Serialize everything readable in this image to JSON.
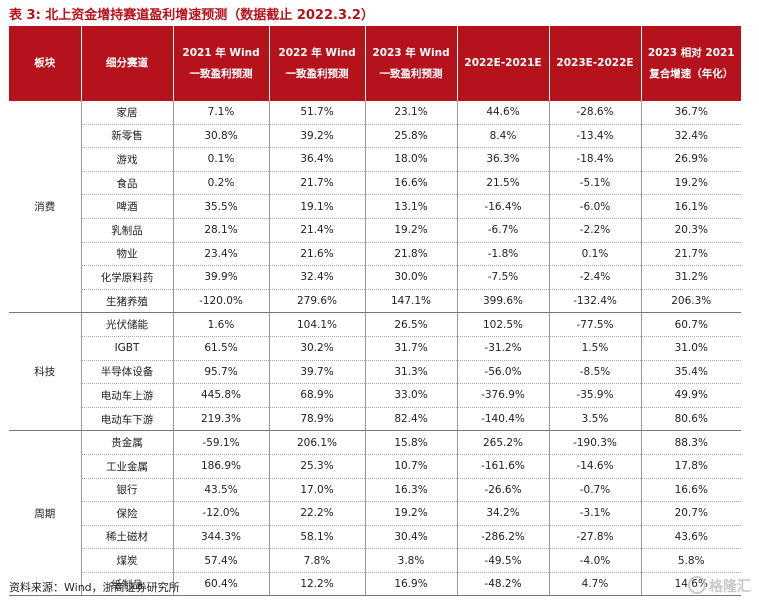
{
  "caption": "表 3: 北上资金增持赛道盈利增速预测（数据截止 2022.3.2）",
  "headers": [
    "板块",
    "细分赛道",
    "2021 年 Wind 一致盈利预测",
    "2022 年 Wind 一致盈利预测",
    "2023 年 Wind 一致盈利预测",
    "2022E-2021E",
    "2023E-2022E",
    "2023 相对 2021 复合增速（年化）"
  ],
  "groups": [
    {
      "name": "消费",
      "rows": [
        [
          "家居",
          "7.1%",
          "51.7%",
          "23.1%",
          "44.6%",
          "-28.6%",
          "36.7%"
        ],
        [
          "新零售",
          "30.8%",
          "39.2%",
          "25.8%",
          "8.4%",
          "-13.4%",
          "32.4%"
        ],
        [
          "游戏",
          "0.1%",
          "36.4%",
          "18.0%",
          "36.3%",
          "-18.4%",
          "26.9%"
        ],
        [
          "食品",
          "0.2%",
          "21.7%",
          "16.6%",
          "21.5%",
          "-5.1%",
          "19.2%"
        ],
        [
          "啤酒",
          "35.5%",
          "19.1%",
          "13.1%",
          "-16.4%",
          "-6.0%",
          "16.1%"
        ],
        [
          "乳制品",
          "28.1%",
          "21.4%",
          "19.2%",
          "-6.7%",
          "-2.2%",
          "20.3%"
        ],
        [
          "物业",
          "23.4%",
          "21.6%",
          "21.8%",
          "-1.8%",
          "0.1%",
          "21.7%"
        ],
        [
          "化学原料药",
          "39.9%",
          "32.4%",
          "30.0%",
          "-7.5%",
          "-2.4%",
          "31.2%"
        ],
        [
          "生猪养殖",
          "-120.0%",
          "279.6%",
          "147.1%",
          "399.6%",
          "-132.4%",
          "206.3%"
        ]
      ]
    },
    {
      "name": "科技",
      "rows": [
        [
          "光伏储能",
          "1.6%",
          "104.1%",
          "26.5%",
          "102.5%",
          "-77.5%",
          "60.7%"
        ],
        [
          "IGBT",
          "61.5%",
          "30.2%",
          "31.7%",
          "-31.2%",
          "1.5%",
          "31.0%"
        ],
        [
          "半导体设备",
          "95.7%",
          "39.7%",
          "31.3%",
          "-56.0%",
          "-8.5%",
          "35.4%"
        ],
        [
          "电动车上游",
          "445.8%",
          "68.9%",
          "33.0%",
          "-376.9%",
          "-35.9%",
          "49.9%"
        ],
        [
          "电动车下游",
          "219.3%",
          "78.9%",
          "82.4%",
          "-140.4%",
          "3.5%",
          "80.6%"
        ]
      ]
    },
    {
      "name": "周期",
      "rows": [
        [
          "贵金属",
          "-59.1%",
          "206.1%",
          "15.8%",
          "265.2%",
          "-190.3%",
          "88.3%"
        ],
        [
          "工业金属",
          "186.9%",
          "25.3%",
          "10.7%",
          "-161.6%",
          "-14.6%",
          "17.8%"
        ],
        [
          "银行",
          "43.5%",
          "17.0%",
          "16.3%",
          "-26.6%",
          "-0.7%",
          "16.6%"
        ],
        [
          "保险",
          "-12.0%",
          "22.2%",
          "19.2%",
          "34.2%",
          "-3.1%",
          "20.7%"
        ],
        [
          "稀土磁材",
          "344.3%",
          "58.1%",
          "30.4%",
          "-286.2%",
          "-27.8%",
          "43.6%"
        ],
        [
          "煤炭",
          "57.4%",
          "7.8%",
          "3.8%",
          "-49.5%",
          "-4.0%",
          "5.8%"
        ],
        [
          "纸制品",
          "60.4%",
          "12.2%",
          "16.9%",
          "-48.2%",
          "4.7%",
          "14.6%"
        ]
      ]
    }
  ],
  "source": "资料来源：Wind，浙商证券研究所",
  "watermark": "格隆汇"
}
